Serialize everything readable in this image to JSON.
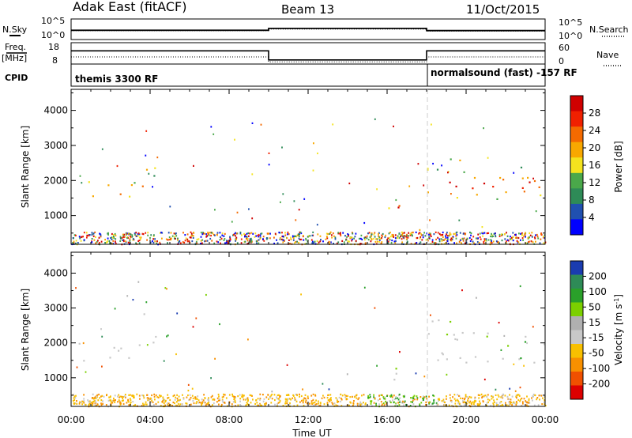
{
  "header": {
    "radar": "Adak East (fitACF)",
    "beam": "Beam 13",
    "date": "11/Oct/2015"
  },
  "left_labels": {
    "nsky": "N.Sky",
    "freq": "Freq.",
    "freq_unit": "[MHz]",
    "cpid": "CPID"
  },
  "right_labels": {
    "nsearch": "N.Search",
    "nave": "Nave"
  },
  "top_panel_ticks": {
    "noise_left_top": "10^5",
    "noise_left_bottom": "10^0",
    "noise_right_top": "10^5",
    "noise_right_bottom": "10^0",
    "freq_left_top": "18",
    "freq_left_bottom": "8",
    "nave_right_top": "60",
    "nave_right_bottom": "0"
  },
  "cpid_labels": {
    "first": "themis 3300 RF",
    "second": "normalsound (fast) -157 RF"
  },
  "colors": {
    "power": [
      "#0000ff",
      "#2050b0",
      "#2e8b57",
      "#4aa84a",
      "#f4e31e",
      "#f8a800",
      "#f46a00",
      "#f02000",
      "#d00000"
    ],
    "velocity": [
      "#dd0000",
      "#f05000",
      "#f89000",
      "#f8c000",
      "#c8c8c8",
      "#b0b0b0",
      "#7cd000",
      "#2aa02a",
      "#2e8b57",
      "#1a3cb0"
    ]
  },
  "chart_data": [
    {
      "type": "line",
      "series": [
        {
          "name": "N.Sky",
          "x": [
            0,
            10,
            10,
            18,
            18,
            24
          ],
          "y": [
            200,
            200,
            800,
            800,
            150,
            150
          ]
        },
        {
          "name": "N.Search",
          "x": [
            0,
            10,
            10,
            18,
            18,
            24
          ],
          "y": [
            150,
            150,
            500,
            500,
            100,
            100
          ]
        }
      ]
    },
    {
      "type": "line",
      "series": [
        {
          "name": "Freq.",
          "x": [
            0,
            10,
            10,
            18,
            18,
            24
          ],
          "y": [
            15,
            15,
            9.5,
            9.5,
            15,
            15
          ]
        },
        {
          "name": "Nave",
          "x": [
            0,
            10,
            10,
            18,
            18,
            24
          ],
          "y": [
            20,
            20,
            2,
            2,
            20,
            20
          ]
        }
      ]
    },
    {
      "type": "heatmap",
      "parameter": "power",
      "xlabel": "",
      "ylabel": "Slant Range [km]",
      "ylim": [
        180,
        4600
      ],
      "yticks": [
        "1000",
        "2000",
        "3000",
        "4000"
      ],
      "colorbar_label": "Power [dB]",
      "colorbar_ticks": [
        "4",
        "8",
        "12",
        "16",
        "20",
        "24",
        "28"
      ],
      "regions": [
        {
          "x": [
            0.3,
            3.6
          ],
          "y": [
            1450,
            2050
          ],
          "level": "high"
        },
        {
          "x": [
            3.6,
            4.3
          ],
          "y": [
            2000,
            2900
          ],
          "level": "mid"
        },
        {
          "x": [
            15.8,
            16.6
          ],
          "y": [
            950,
            1700
          ],
          "level": "mid"
        },
        {
          "x": [
            16.4,
            17.0
          ],
          "y": [
            1100,
            1450
          ],
          "level": "high"
        },
        {
          "x": [
            18.0,
            24.0
          ],
          "y": [
            1400,
            2400
          ],
          "level": "high"
        },
        {
          "x": [
            18.0,
            20.0
          ],
          "y": [
            2200,
            2700
          ],
          "level": "low"
        }
      ]
    },
    {
      "type": "heatmap",
      "parameter": "velocity",
      "xlabel": "Time UT",
      "ylabel": "Slant Range [km]",
      "xticks": [
        "00:00",
        "04:00",
        "08:00",
        "12:00",
        "16:00",
        "20:00",
        "00:00"
      ],
      "ylim": [
        180,
        4600
      ],
      "yticks": [
        "1000",
        "2000",
        "3000",
        "4000"
      ],
      "colorbar_label": "Velocity [m s",
      "colorbar_label_sup": "-1",
      "colorbar_label_end": "]",
      "colorbar_ticks": [
        "200",
        "100",
        "50",
        "15",
        "-15",
        "-50",
        "-100",
        "-200"
      ],
      "regions": [
        {
          "x": [
            0.3,
            3.6
          ],
          "y": [
            1450,
            2050
          ],
          "level": "ground"
        },
        {
          "x": [
            3.6,
            4.3
          ],
          "y": [
            2000,
            2900
          ],
          "level": "ground"
        },
        {
          "x": [
            15.8,
            16.6
          ],
          "y": [
            950,
            1700
          ],
          "level": "ground"
        },
        {
          "x": [
            16.4,
            17.0
          ],
          "y": [
            1100,
            1450
          ],
          "level": "ground"
        },
        {
          "x": [
            18.0,
            24.0
          ],
          "y": [
            1400,
            2400
          ],
          "level": "ground"
        },
        {
          "x": [
            18.0,
            20.0
          ],
          "y": [
            2200,
            2700
          ],
          "level": "ground"
        }
      ]
    }
  ]
}
